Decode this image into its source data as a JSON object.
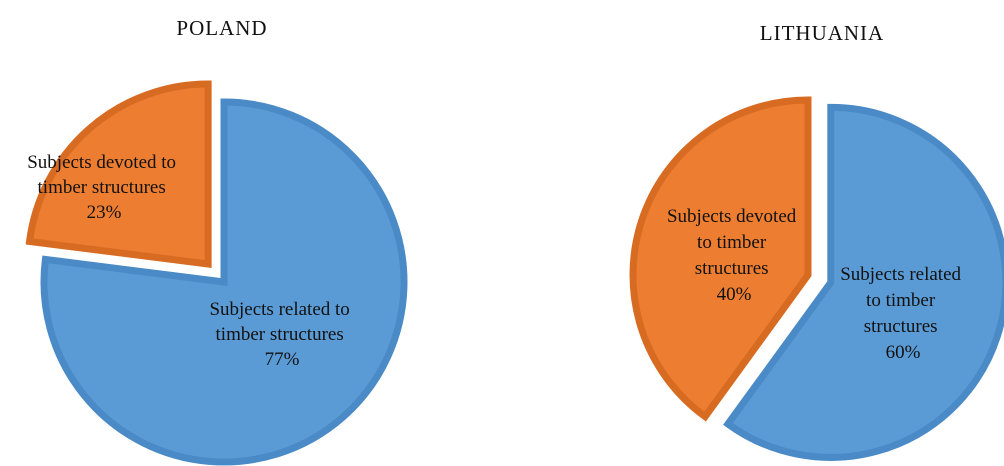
{
  "chart_data": [
    {
      "type": "pie",
      "title": "POLAND",
      "slices": [
        {
          "label": [
            "Subjects related to",
            "timber structures",
            "77%"
          ],
          "value": 77,
          "color": "#5b9bd5",
          "stroke": "#4a8ac6",
          "exploded": false
        },
        {
          "label": [
            "Subjects devoted to",
            "timber structures",
            "23%"
          ],
          "value": 23,
          "color": "#ed7d31",
          "stroke": "#d86b22",
          "exploded": true
        }
      ]
    },
    {
      "type": "pie",
      "title": "LITHUANIA",
      "slices": [
        {
          "label": [
            "Subjects related",
            "to timber",
            "structures",
            "60%"
          ],
          "value": 60,
          "color": "#5b9bd5",
          "stroke": "#4a8ac6",
          "exploded": true
        },
        {
          "label": [
            "Subjects devoted",
            "to timber",
            "structures",
            "40%"
          ],
          "value": 40,
          "color": "#ed7d31",
          "stroke": "#d86b22",
          "exploded": false
        }
      ]
    }
  ]
}
